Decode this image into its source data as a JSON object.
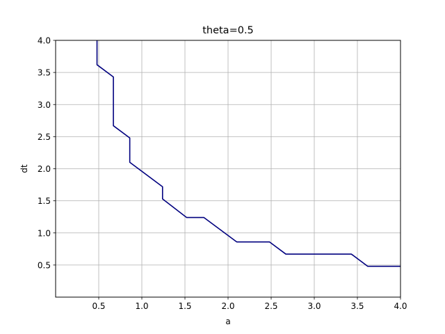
{
  "chart_data": {
    "type": "line",
    "title": "theta=0.5",
    "xlabel": "a",
    "ylabel": "dt",
    "xlim": [
      0.0,
      4.0
    ],
    "ylim": [
      0.0,
      4.0
    ],
    "grid": true,
    "x_ticks": [
      {
        "value": 0.5,
        "label": "0.5"
      },
      {
        "value": 1.0,
        "label": "1.0"
      },
      {
        "value": 1.5,
        "label": "1.5"
      },
      {
        "value": 2.0,
        "label": "2.0"
      },
      {
        "value": 2.5,
        "label": "2.5"
      },
      {
        "value": 3.0,
        "label": "3.0"
      },
      {
        "value": 3.5,
        "label": "3.5"
      },
      {
        "value": 4.0,
        "label": "4.0"
      }
    ],
    "y_ticks": [
      {
        "value": 0.5,
        "label": "0.5"
      },
      {
        "value": 1.0,
        "label": "1.0"
      },
      {
        "value": 1.5,
        "label": "1.5"
      },
      {
        "value": 2.0,
        "label": "2.0"
      },
      {
        "value": 2.5,
        "label": "2.5"
      },
      {
        "value": 3.0,
        "label": "3.0"
      },
      {
        "value": 3.5,
        "label": "3.5"
      },
      {
        "value": 4.0,
        "label": "4.0"
      }
    ],
    "series": [
      {
        "color": "#00007f",
        "x": [
          0.48,
          0.48,
          0.67,
          0.67,
          0.86,
          0.86,
          1.24,
          1.24,
          1.52,
          1.72,
          2.1,
          2.48,
          2.67,
          3.43,
          3.62,
          4.0
        ],
        "y": [
          4.0,
          3.62,
          3.43,
          2.67,
          2.48,
          2.1,
          1.72,
          1.53,
          1.24,
          1.24,
          0.86,
          0.86,
          0.67,
          0.67,
          0.48,
          0.48
        ]
      }
    ]
  }
}
